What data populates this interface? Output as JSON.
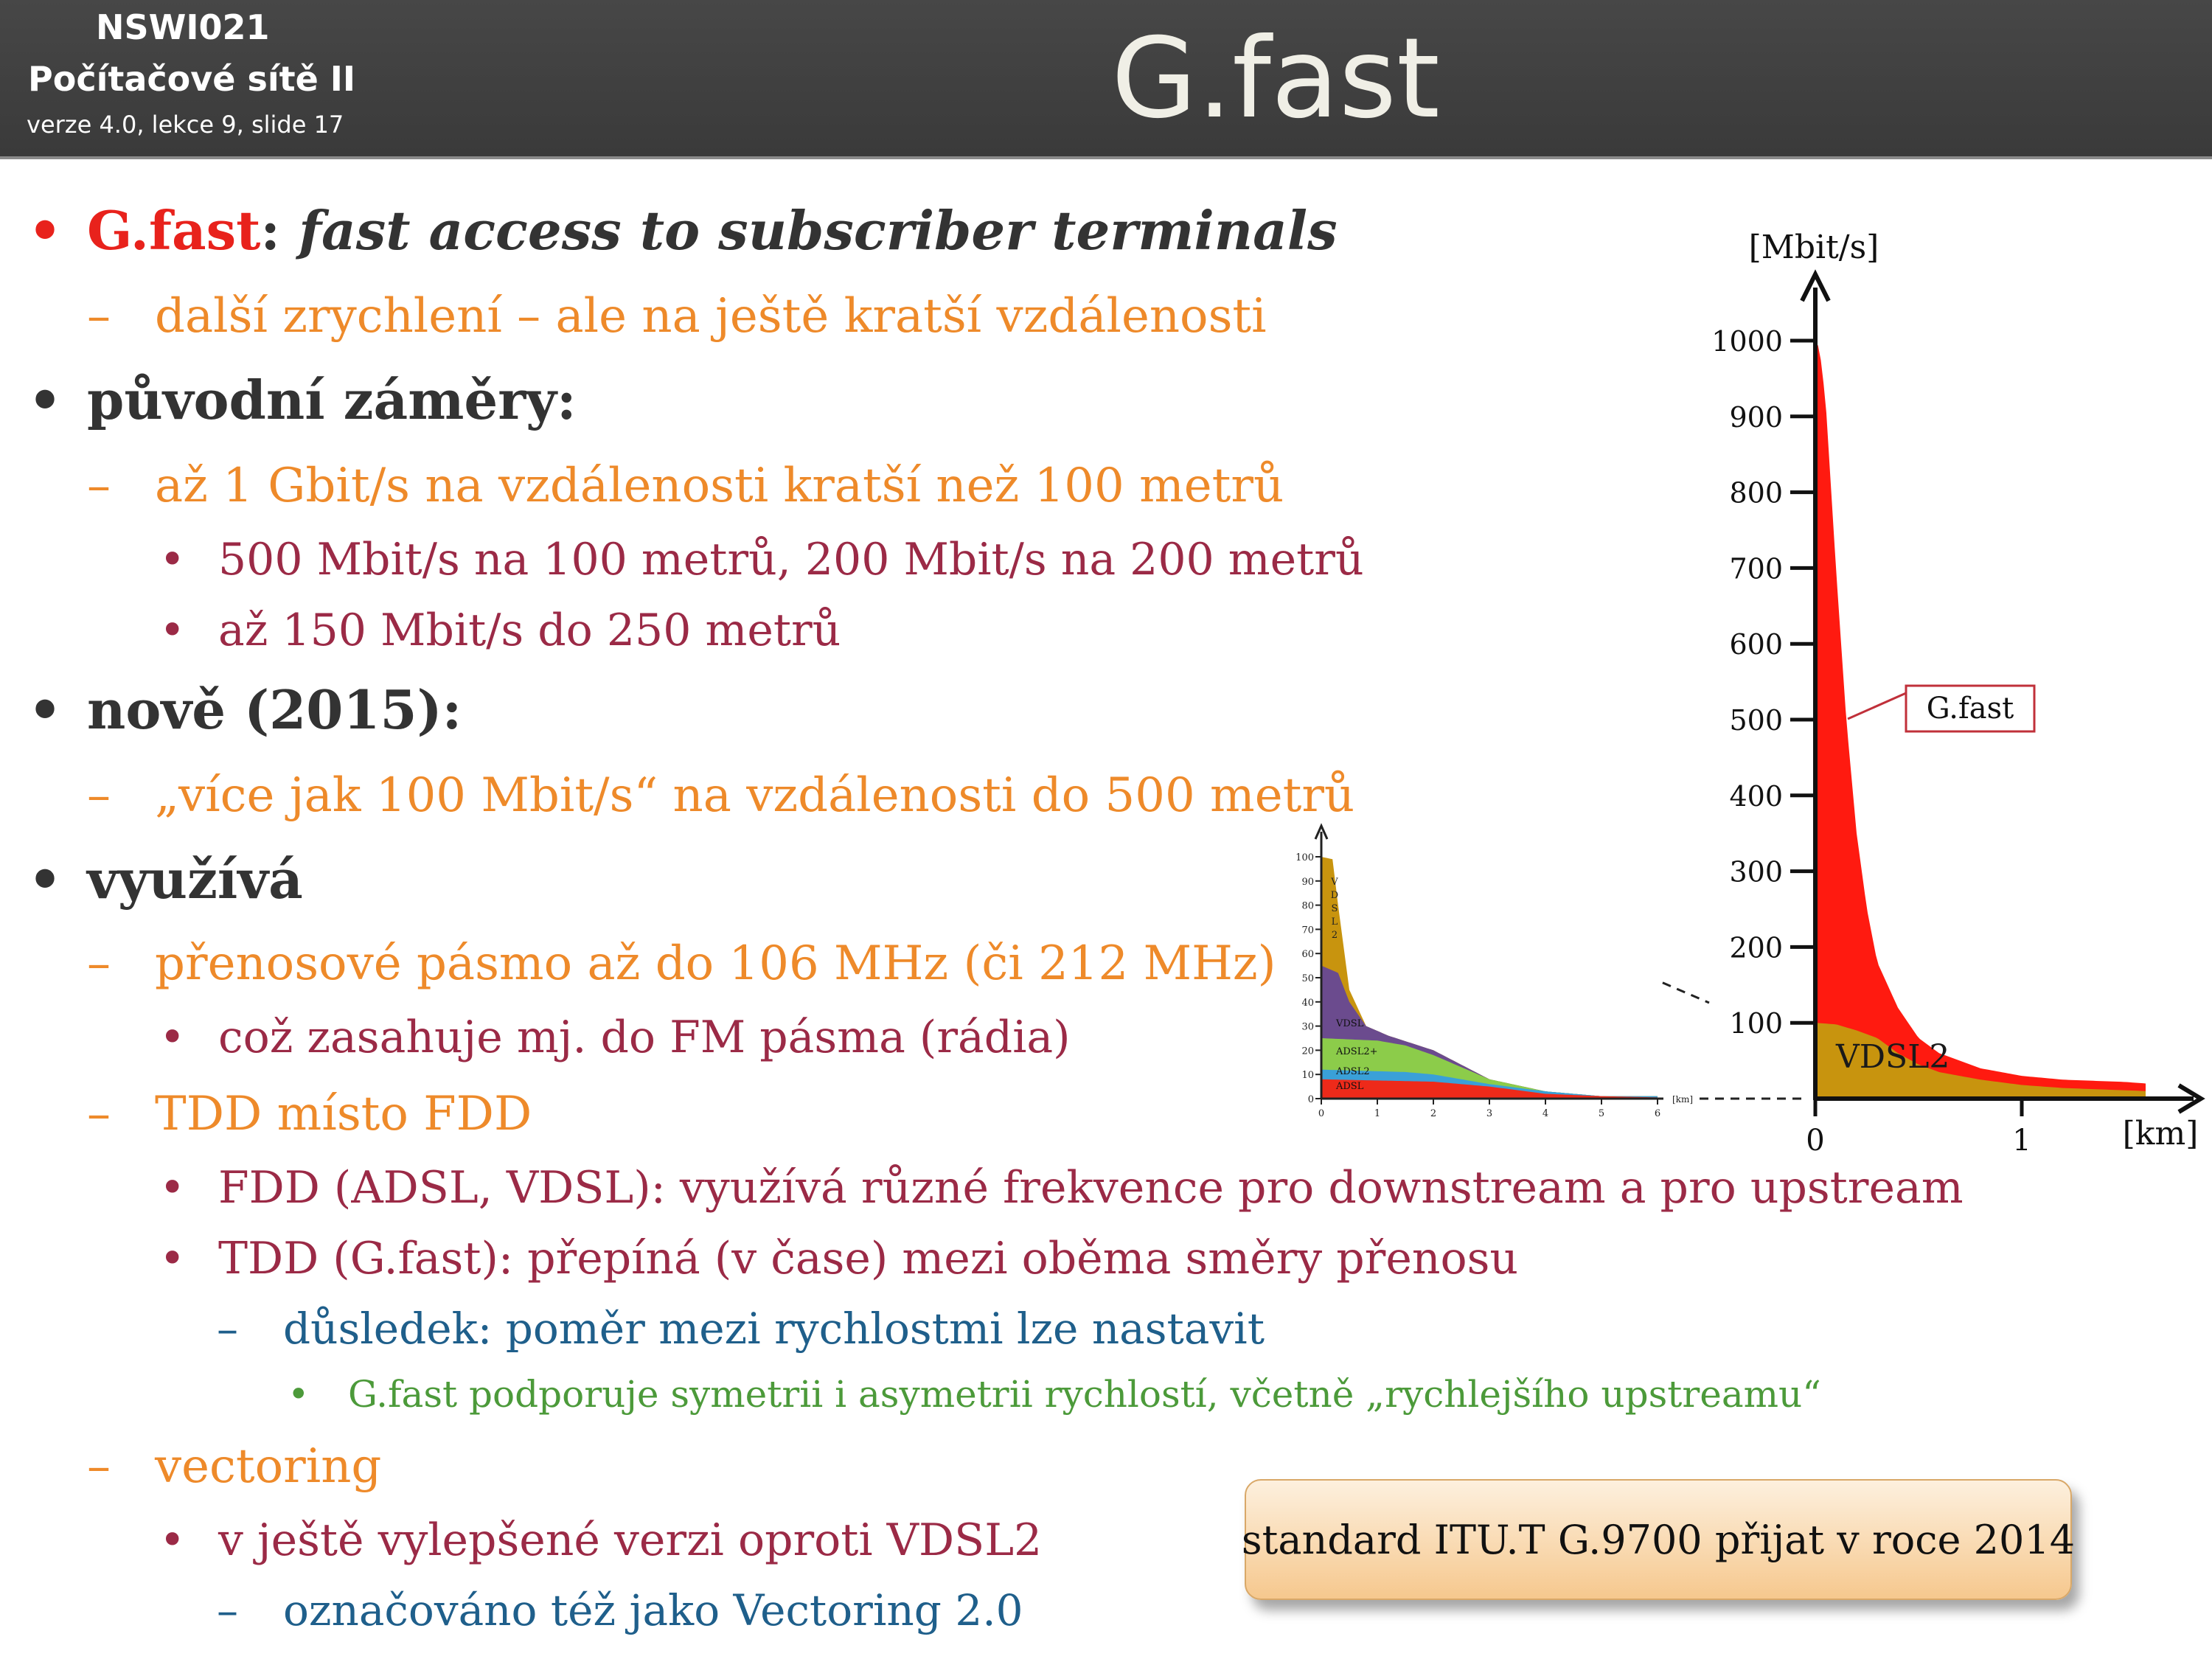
{
  "header": {
    "course_code": "NSWI021",
    "course_name": "Počítačové sítě II",
    "version": "verze 4.0, lekce  9, slide 17",
    "title": "G.fast"
  },
  "bullets": {
    "b1_term": "G.fast",
    "b1_colon": ":",
    "b1_text": "fast access to subscriber terminals",
    "b1_sub": "další zrychlení – ale na ještě kratší vzdálenosti",
    "b2": "původní záměry:",
    "b2_sub": "až 1 Gbit/s na vzdálenosti kratší než 100 metrů",
    "b2_sub_1": "500 Mbit/s na 100 metrů, 200 Mbit/s na 200 metrů",
    "b2_sub_2": "až 150 Mbit/s do 250 metrů",
    "b3": "nově (2015):",
    "b3_sub": "„více jak 100 Mbit/s“ na vzdálenosti do 500 metrů",
    "b4": "využívá",
    "b4_sub1": "přenosové pásmo až do 106 MHz (či 212 MHz)",
    "b4_sub1_1": "což zasahuje mj. do FM pásma (rádia)",
    "b4_sub2": "TDD místo FDD",
    "b4_sub2_1": "FDD (ADSL, VDSL): využívá různé frekvence pro downstream a pro upstream",
    "b4_sub2_2": "TDD (G.fast): přepíná (v čase) mezi oběma směry přenosu",
    "b4_sub2_2_1": "důsledek: poměr mezi rychlostmi lze nastavit",
    "b4_sub2_2_1_1": "G.fast podporuje symetrii i asymetrii rychlostí, včetně „rychlejšího upstreamu“",
    "b4_sub3": "vectoring",
    "b4_sub3_1": "v ještě vylepšené verzi oproti VDSL2",
    "b4_sub3_1_1": "označováno též jako Vectoring 2.0"
  },
  "bullet_symbols": {
    "dot": "•",
    "dash": "–"
  },
  "callout": "standard ITU.T  G.9700 přijat v roce 2014",
  "chart_data": [
    {
      "type": "area",
      "ylabel": "[Mbit/s]",
      "xlabel": "[km]",
      "ylim": [
        0,
        1000
      ],
      "xlim": [
        0,
        1.8
      ],
      "y_ticks": [
        1000,
        900,
        800,
        700,
        600,
        500,
        400,
        300,
        200,
        100
      ],
      "x_ticks": [
        0,
        1
      ],
      "series": [
        {
          "name": "G.fast",
          "color": "#ff1a10",
          "x": [
            0,
            0.02,
            0.05,
            0.1,
            0.15,
            0.2,
            0.25,
            0.3,
            0.4,
            0.5,
            0.6,
            0.8,
            1.0,
            1.2,
            1.5,
            1.6
          ],
          "values": [
            1000,
            990,
            920,
            700,
            500,
            350,
            250,
            180,
            120,
            80,
            60,
            40,
            30,
            25,
            22,
            20
          ]
        },
        {
          "name": "VDSL2",
          "color": "#c8940e",
          "x": [
            0,
            0.1,
            0.2,
            0.3,
            0.4,
            0.5,
            0.6,
            0.8,
            1.0,
            1.2,
            1.6
          ],
          "values": [
            100,
            98,
            90,
            80,
            60,
            45,
            35,
            25,
            18,
            14,
            10
          ]
        }
      ]
    },
    {
      "type": "area",
      "ylim": [
        0,
        100
      ],
      "xlim": [
        0,
        6
      ],
      "xlabel": "[km]",
      "y_ticks": [
        100,
        90,
        80,
        70,
        60,
        50,
        40,
        30,
        20,
        10,
        0
      ],
      "x_ticks": [
        0,
        1,
        2,
        3,
        4,
        5,
        6
      ],
      "vertical_series_label": [
        "V",
        "D",
        "S",
        "L",
        "2"
      ],
      "series": [
        {
          "name": "VDSL2",
          "color": "#c8940e",
          "x": [
            0,
            0.2,
            0.3,
            0.5,
            0.8,
            1.2,
            2.0,
            3.0,
            4.0,
            5.0,
            6.0
          ],
          "values": [
            100,
            99,
            80,
            45,
            30,
            26,
            20,
            8,
            3,
            1,
            1
          ]
        },
        {
          "name": "VDSL",
          "color": "#6b4b8e",
          "x": [
            0,
            0.3,
            0.5,
            0.8,
            1.2,
            2.0,
            3.0,
            4.0,
            5.0,
            6.0
          ],
          "values": [
            55,
            52,
            40,
            30,
            26,
            20,
            8,
            3,
            1,
            1
          ]
        },
        {
          "name": "ADSL2+",
          "color": "#8ccc4a",
          "x": [
            0,
            1.0,
            1.5,
            2.0,
            3.0,
            4.0,
            5.0,
            6.0
          ],
          "values": [
            25,
            24,
            22,
            18,
            8,
            3,
            1,
            1
          ]
        },
        {
          "name": "ADSL2",
          "color": "#3aa0d8",
          "x": [
            0,
            1.5,
            2.0,
            3.0,
            4.0,
            5.0,
            6.0
          ],
          "values": [
            12,
            11,
            10,
            6,
            3,
            1,
            1
          ]
        },
        {
          "name": "ADSL",
          "color": "#ee2a1a",
          "x": [
            0,
            2.0,
            3.0,
            4.0,
            5.0,
            6.0
          ],
          "values": [
            8,
            7,
            5,
            2,
            1,
            0.5
          ]
        }
      ]
    }
  ]
}
